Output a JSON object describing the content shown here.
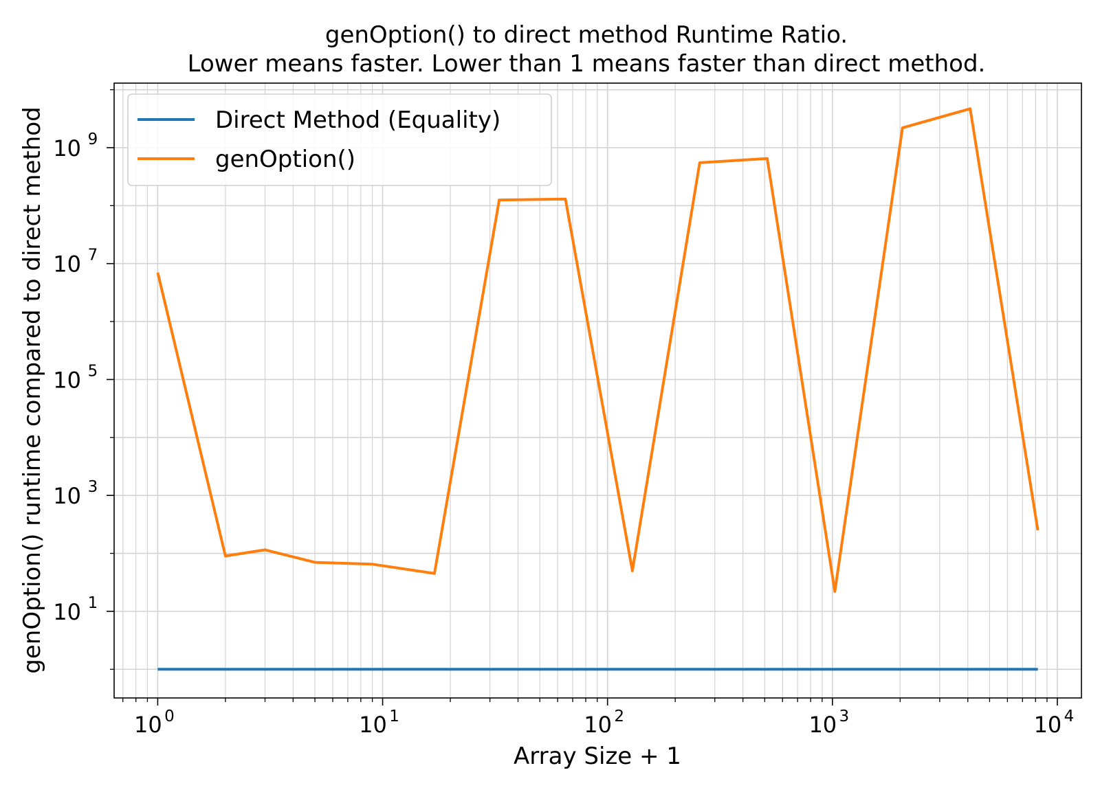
{
  "chart_data": {
    "type": "line",
    "title": "genOption() to direct method Runtime Ratio.",
    "subtitle": "Lower means faster. Lower than 1 means faster than direct method.",
    "xlabel": "Array Size + 1",
    "ylabel": "genOption() runtime compared to direct method",
    "xscale": "log",
    "yscale": "log",
    "xlim": [
      0.64,
      12800
    ],
    "ylim": [
      0.32,
      13000000000.0
    ],
    "x_ticks": [
      1,
      10,
      100,
      1000,
      10000
    ],
    "x_tick_labels": [
      {
        "base": "10",
        "exp": "0"
      },
      {
        "base": "10",
        "exp": "1"
      },
      {
        "base": "10",
        "exp": "2"
      },
      {
        "base": "10",
        "exp": "3"
      },
      {
        "base": "10",
        "exp": "4"
      }
    ],
    "y_ticks": [
      10,
      1000,
      100000,
      10000000,
      1000000000
    ],
    "y_tick_labels": [
      {
        "base": "10",
        "exp": "1"
      },
      {
        "base": "10",
        "exp": "3"
      },
      {
        "base": "10",
        "exp": "5"
      },
      {
        "base": "10",
        "exp": "7"
      },
      {
        "base": "10",
        "exp": "9"
      }
    ],
    "grid": true,
    "legend_position": "top-left",
    "x": [
      1,
      2,
      3,
      5,
      9,
      17,
      33,
      65,
      129,
      257,
      513,
      1025,
      2049,
      4097,
      8193
    ],
    "series": [
      {
        "name": "Direct Method (Equality)",
        "color": "#1f77b4",
        "values": [
          1,
          1,
          1,
          1,
          1,
          1,
          1,
          1,
          1,
          1,
          1,
          1,
          1,
          1,
          1
        ]
      },
      {
        "name": "genOption()",
        "color": "#ff7f0e",
        "values": [
          7000000,
          90,
          115,
          70,
          65,
          45,
          125000000,
          130000000,
          50,
          550000000,
          650000000,
          22,
          2200000000,
          4700000000,
          250
        ]
      }
    ]
  }
}
